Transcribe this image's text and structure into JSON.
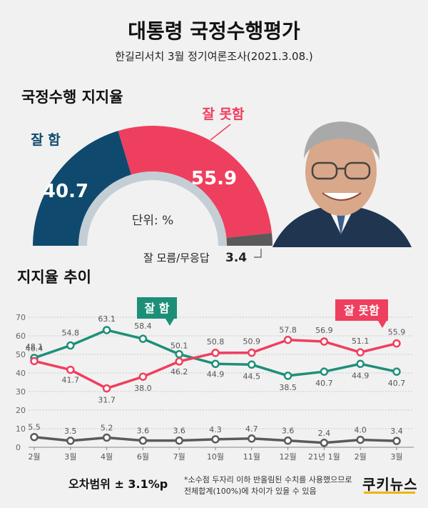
{
  "header": {
    "title": "대통령 국정수행평가",
    "subtitle": "한길리서치 3월 정기여론조사(2021.3.08.)"
  },
  "sections": {
    "approval": "국정수행 지지율",
    "trend": "지지율 추이"
  },
  "gauge": {
    "good_label": "잘 함",
    "bad_label": "잘 못함",
    "unknown_label": "잘 모름/무응답",
    "good": 40.7,
    "bad": 55.9,
    "unknown": 3.4,
    "good_text": "40.7",
    "bad_text": "55.9",
    "unknown_text": "3.4",
    "unit_label": "단위: %",
    "colors": {
      "good": "#0f4a6e",
      "bad": "#ef3f5e",
      "unknown": "#5a5a5a"
    }
  },
  "chart_data": {
    "type": "line",
    "categories": [
      "2월",
      "3월",
      "4월",
      "6월",
      "7월",
      "10월",
      "11월",
      "12월",
      "21년 1월",
      "2월",
      "3월"
    ],
    "ylim": [
      0,
      70
    ],
    "yticks": [
      0,
      10,
      20,
      30,
      40,
      50,
      60,
      70
    ],
    "grid": true,
    "series": [
      {
        "name": "잘 함",
        "color": "#1d8f78",
        "values": [
          48.1,
          54.8,
          63.1,
          58.4,
          50.1,
          44.9,
          44.5,
          38.5,
          40.7,
          44.9,
          40.7
        ],
        "labels": [
          "48.1",
          "54.8",
          "63.1",
          "58.4",
          "50.1",
          "44.9",
          "44.5",
          "38.5",
          "40.7",
          "44.9",
          "40.7"
        ]
      },
      {
        "name": "잘 못함",
        "color": "#ef3f5e",
        "values": [
          46.4,
          41.7,
          31.7,
          38.0,
          46.2,
          50.8,
          50.9,
          57.8,
          56.9,
          51.1,
          55.9
        ],
        "labels": [
          "46.4",
          "41.7",
          "31.7",
          "38.0",
          "46.2",
          "50.8",
          "50.9",
          "57.8",
          "56.9",
          "51.1",
          "55.9"
        ]
      },
      {
        "name": "",
        "color": "#5a5a5a",
        "values": [
          5.5,
          3.5,
          5.2,
          3.6,
          3.6,
          4.3,
          4.7,
          3.6,
          2.4,
          4.0,
          3.4
        ],
        "labels": [
          "5.5",
          "3.5",
          "5.2",
          "3.6",
          "3.6",
          "4.3",
          "4.7",
          "3.6",
          "2.4",
          "4.0",
          "3.4"
        ]
      }
    ]
  },
  "footer": {
    "error": "오차범위 ± 3.1%p",
    "note1": "*소수점 두자리 이하 반올림된 수치를 사용했으므로",
    "note2": "전체합계(100%)에 차이가 있을 수 있음",
    "logo": "쿠키뉴스"
  }
}
